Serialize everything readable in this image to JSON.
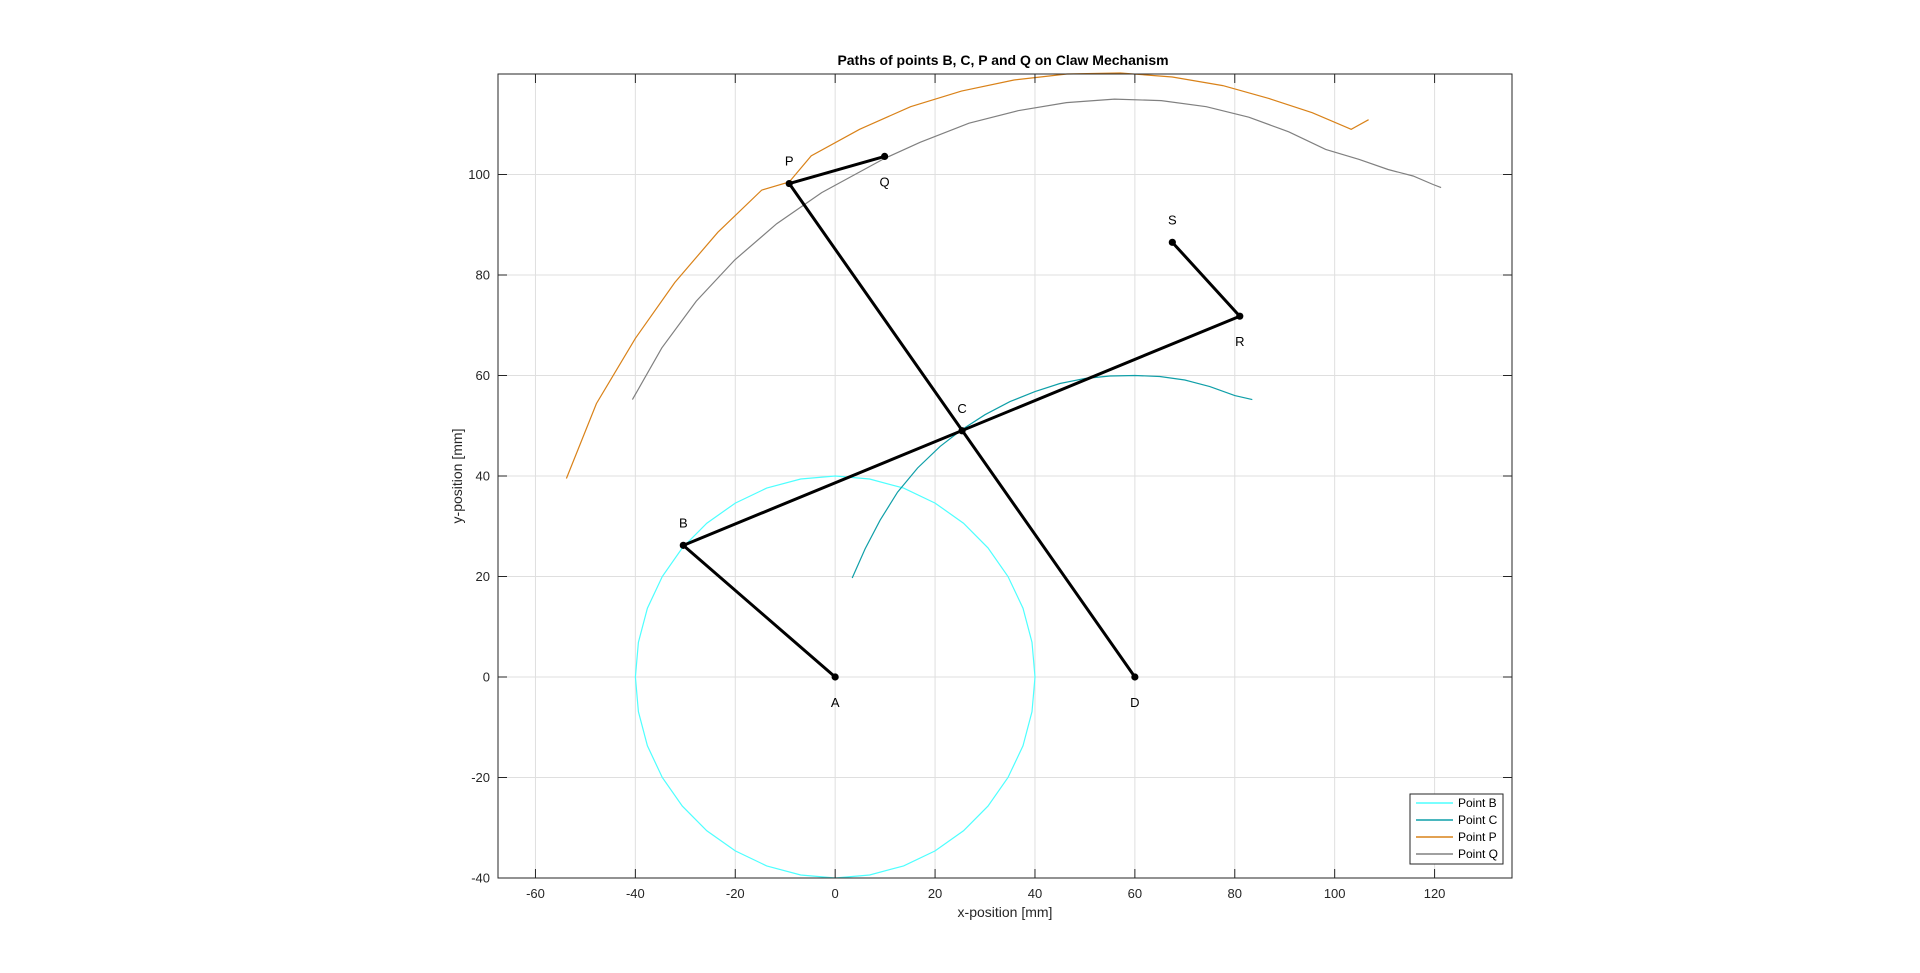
{
  "chart_data": {
    "type": "line",
    "title": "Paths of points B, C, P and Q on Claw Mechanism",
    "xlabel": "x-position [mm]",
    "ylabel": "y-position [mm]",
    "xlim": [
      -67.5,
      135.5
    ],
    "ylim": [
      -40,
      120
    ],
    "xticks": [
      -60,
      -40,
      -20,
      0,
      20,
      40,
      60,
      80,
      100,
      120
    ],
    "yticks": [
      -40,
      -20,
      0,
      20,
      40,
      60,
      80,
      100
    ],
    "xtick_labels": [
      "-60",
      "-40",
      "-20",
      "0",
      "20",
      "40",
      "60",
      "80",
      "100",
      "120"
    ],
    "ytick_labels": [
      "-40",
      "-20",
      "0",
      "20",
      "40",
      "60",
      "80",
      "100"
    ],
    "grid": true,
    "legend_position": "bottom-right",
    "series": [
      {
        "name": "Point B",
        "color": "#4DFFFF",
        "x": [
          40.0,
          39.4,
          37.6,
          34.6,
          30.6,
          25.7,
          20.0,
          13.7,
          6.9,
          0.0,
          -6.9,
          -13.7,
          -20.0,
          -25.7,
          -30.6,
          -34.6,
          -37.6,
          -39.4,
          -40.0,
          -39.4,
          -37.6,
          -34.6,
          -30.6,
          -25.7,
          -20.0,
          -13.7,
          -6.9,
          0.0,
          6.9,
          13.7,
          20.0,
          25.7,
          30.6,
          34.6,
          37.6,
          39.4,
          40.0
        ],
        "y": [
          0.0,
          6.9,
          13.7,
          20.0,
          25.7,
          30.6,
          34.6,
          37.6,
          39.4,
          40.0,
          39.4,
          37.6,
          34.6,
          30.6,
          25.7,
          20.0,
          13.7,
          6.9,
          0.0,
          -6.9,
          -13.7,
          -20.0,
          -25.7,
          -30.6,
          -34.6,
          -37.6,
          -39.4,
          -40.0,
          -39.4,
          -37.6,
          -34.6,
          -30.6,
          -25.7,
          -20.0,
          -13.7,
          -6.9,
          0.0
        ]
      },
      {
        "name": "Point C",
        "color": "#0F9FA8",
        "x": [
          3.4,
          6.0,
          9.0,
          12.5,
          16.5,
          21.0,
          25.2,
          30.0,
          35.0,
          40.0,
          45.0,
          50.0,
          55.0,
          60.0,
          65.0,
          70.0,
          75.0,
          80.0,
          83.5
        ],
        "y": [
          19.7,
          25.5,
          31.2,
          36.8,
          41.6,
          45.9,
          49.1,
          52.2,
          54.8,
          56.8,
          58.4,
          59.4,
          59.9,
          60.0,
          59.8,
          59.1,
          57.8,
          56.0,
          55.2
        ]
      },
      {
        "name": "Point P",
        "color": "#D98219",
        "x": [
          -53.8,
          -47.8,
          -40.0,
          -32.1,
          -23.5,
          -14.7,
          -9.2,
          -4.8,
          4.9,
          15.1,
          25.3,
          35.8,
          46.4,
          57.1,
          67.5,
          77.6,
          86.9,
          95.5,
          103.3,
          106.8
        ],
        "y": [
          39.5,
          54.4,
          67.4,
          78.5,
          88.5,
          96.9,
          98.5,
          103.7,
          109.0,
          113.5,
          116.6,
          118.8,
          120.0,
          120.2,
          119.4,
          117.7,
          115.1,
          112.3,
          109.0,
          110.9
        ]
      },
      {
        "name": "Point Q",
        "color": "#808080",
        "x": [
          -40.6,
          -34.7,
          -27.8,
          -20.1,
          -11.7,
          -2.7,
          9.9,
          17.0,
          26.8,
          36.6,
          46.3,
          55.9,
          65.3,
          74.3,
          82.8,
          90.8,
          98.2,
          104.9,
          110.7,
          115.7,
          119.7,
          121.3
        ],
        "y": [
          55.2,
          65.5,
          74.8,
          83.0,
          90.2,
          96.4,
          103.2,
          106.4,
          110.2,
          112.7,
          114.3,
          115.0,
          114.7,
          113.5,
          111.4,
          108.5,
          105.0,
          103.0,
          101.0,
          99.7,
          98.0,
          97.4
        ]
      }
    ],
    "mechanism": {
      "links": [
        {
          "from": "A",
          "to": "B"
        },
        {
          "from": "B",
          "to": "R"
        },
        {
          "from": "R",
          "to": "S"
        },
        {
          "from": "D",
          "to": "P"
        },
        {
          "from": "P",
          "to": "Q"
        }
      ],
      "joints": [
        {
          "label": "A",
          "x": 0.0,
          "y": 0.0,
          "label_side": "below"
        },
        {
          "label": "B",
          "x": -30.4,
          "y": 26.2,
          "label_side": "above"
        },
        {
          "label": "C",
          "x": 25.4,
          "y": 49.0,
          "label_side": "above"
        },
        {
          "label": "D",
          "x": 60.0,
          "y": 0.0,
          "label_side": "below"
        },
        {
          "label": "P",
          "x": -9.2,
          "y": 98.2,
          "label_side": "above"
        },
        {
          "label": "Q",
          "x": 9.9,
          "y": 103.6,
          "label_side": "below"
        },
        {
          "label": "R",
          "x": 81.0,
          "y": 71.8,
          "label_side": "below"
        },
        {
          "label": "S",
          "x": 67.5,
          "y": 86.5,
          "label_side": "above"
        }
      ]
    }
  }
}
